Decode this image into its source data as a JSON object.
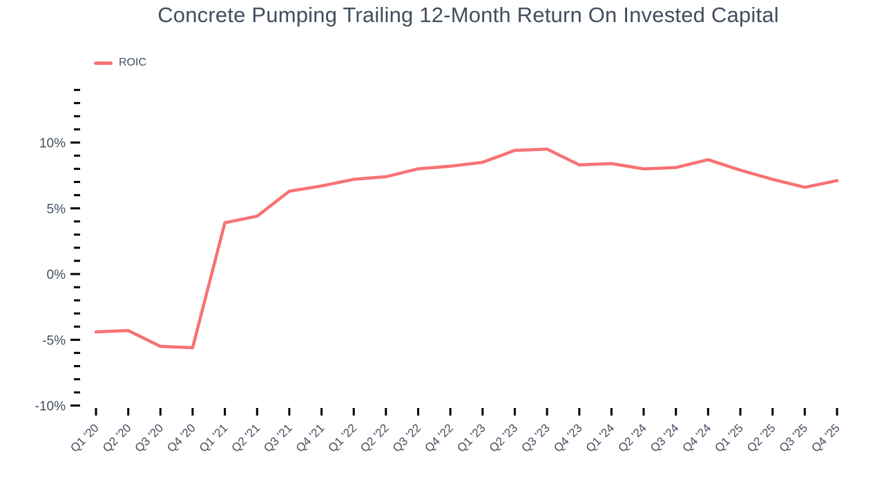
{
  "title": "Concrete Pumping Trailing 12-Month Return On Invested Capital",
  "legend": {
    "label": "ROIC",
    "position": "top-left"
  },
  "colors": {
    "line": "#f87272",
    "text": "#424e5e",
    "tick": "#000000",
    "background": "#ffffff"
  },
  "chart_data": {
    "type": "line",
    "title": "Concrete Pumping Trailing 12-Month Return On Invested Capital",
    "xlabel": "",
    "ylabel": "",
    "categories": [
      "Q1 '20",
      "Q2 '20",
      "Q3 '20",
      "Q4 '20",
      "Q1 '21",
      "Q2 '21",
      "Q3 '21",
      "Q4 '21",
      "Q1 '22",
      "Q2 '22",
      "Q3 '22",
      "Q4 '22",
      "Q1 '23",
      "Q2 '23",
      "Q3 '23",
      "Q4 '23",
      "Q1 '24",
      "Q2 '24",
      "Q3 '24",
      "Q4 '24",
      "Q1 '25",
      "Q2 '25",
      "Q3 '25",
      "Q4 '25"
    ],
    "series": [
      {
        "name": "ROIC",
        "values": [
          -4.4,
          -4.3,
          -5.5,
          -5.6,
          3.9,
          4.4,
          6.3,
          6.7,
          7.2,
          7.4,
          8.0,
          8.2,
          8.5,
          9.4,
          9.5,
          8.3,
          8.4,
          8.0,
          8.1,
          8.7,
          7.9,
          7.2,
          6.6,
          7.1
        ]
      }
    ],
    "y_axis": {
      "unit": "%",
      "tick_min": -10,
      "tick_max": 14,
      "minor_tick_step": 1,
      "major_tick_step": 5,
      "major_tick_labels": [
        "-10%",
        "-5%",
        "0%",
        "5%",
        "10%"
      ]
    },
    "ylim": [
      -10.8,
      14.5
    ],
    "grid": false,
    "legend_position": "top-left"
  }
}
